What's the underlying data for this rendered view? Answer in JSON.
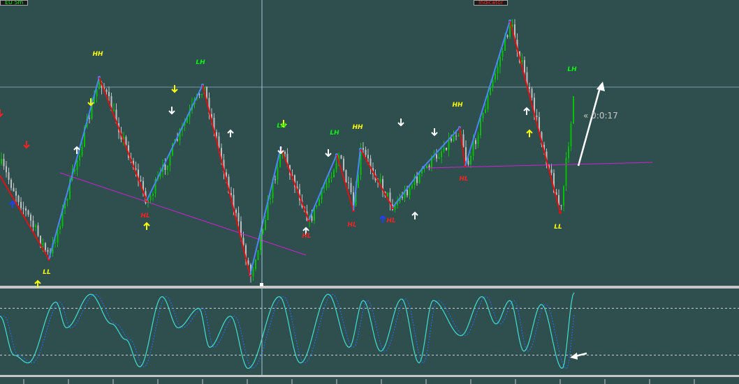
{
  "colors": {
    "background": "#2f4f4f",
    "candle_up": "#00c000",
    "candle_down": "#c0c0c0",
    "zigzag_up": "#4a86ff",
    "zigzag_down": "#e01010",
    "trendline": "#d020d0",
    "label_high": "#ffff00",
    "label_lh": "#00ff00",
    "label_hl": "#ff2020",
    "arrow_white": "#ffffff",
    "arrow_yellow": "#ffff00",
    "arrow_red": "#ff2020",
    "arrow_blue": "#2040ff",
    "osc_main": "#40e0d0",
    "osc_signal": "#1e6fff",
    "osc_levels": "#d0d0d0",
    "crosshair": "#a0c8d8"
  },
  "top_tags": [
    {
      "text": "EU 5m",
      "color": "#00ff00"
    },
    {
      "text": "Indicator",
      "color": "#ff3030"
    }
  ],
  "timer": {
    "text": "« 0:0:17"
  },
  "swing_labels": [
    {
      "text": "HH",
      "kind": "high"
    },
    {
      "text": "LH",
      "kind": "lh"
    },
    {
      "text": "LH",
      "kind": "lh"
    },
    {
      "text": "LH",
      "kind": "lh"
    },
    {
      "text": "HH",
      "kind": "high"
    },
    {
      "text": "HH",
      "kind": "high"
    },
    {
      "text": "LH",
      "kind": "lh"
    },
    {
      "text": "LL",
      "kind": "high"
    },
    {
      "text": "HL",
      "kind": "hl"
    },
    {
      "text": "HL",
      "kind": "hl"
    },
    {
      "text": "HL",
      "kind": "hl"
    },
    {
      "text": "HL",
      "kind": "hl"
    },
    {
      "text": "HL",
      "kind": "hl"
    },
    {
      "text": "LL",
      "kind": "high"
    }
  ],
  "arrows": [
    {
      "dir": "down",
      "color": "red"
    },
    {
      "dir": "up",
      "color": "blue"
    },
    {
      "dir": "up",
      "color": "yellow"
    },
    {
      "dir": "up",
      "color": "white"
    },
    {
      "dir": "down",
      "color": "yellow"
    },
    {
      "dir": "up",
      "color": "yellow"
    },
    {
      "dir": "down",
      "color": "yellow"
    },
    {
      "dir": "down",
      "color": "white"
    },
    {
      "dir": "up",
      "color": "white"
    },
    {
      "dir": "down",
      "color": "yellow"
    },
    {
      "dir": "down",
      "color": "white"
    },
    {
      "dir": "up",
      "color": "white"
    },
    {
      "dir": "down",
      "color": "white"
    },
    {
      "dir": "up",
      "color": "blue"
    },
    {
      "dir": "down",
      "color": "white"
    },
    {
      "dir": "up",
      "color": "white"
    },
    {
      "dir": "down",
      "color": "white"
    },
    {
      "dir": "up",
      "color": "white"
    },
    {
      "dir": "up",
      "color": "yellow"
    },
    {
      "dir": "down",
      "color": "red"
    }
  ],
  "oscillator": {
    "levels": [
      80,
      20
    ]
  }
}
